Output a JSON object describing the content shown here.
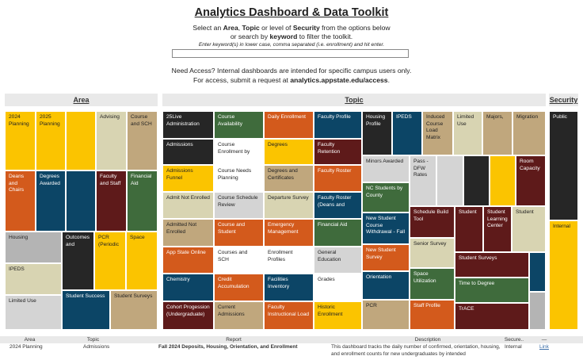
{
  "header": {
    "title": "Analytics Dashboard & Data Toolkit",
    "intro": {
      "l1_a": "Select an ",
      "l1_b": "Area",
      "l1_c": ", ",
      "l1_d": "Topic",
      "l1_e": " or level of ",
      "l1_f": "Security",
      "l1_g": " from the options below",
      "l2_a": "or search by ",
      "l2_b": "keyword",
      "l2_c": " to filter the toolkit."
    },
    "hint": "Enter keyword(s) in lower case, comma separated (i.e. enrollment) and hit enter.",
    "keyword_value": "",
    "access_line1": "Need Access? Internal dashboards are intended for specific campus users only.",
    "access_line2_a": "For access, submit a request at ",
    "access_line2_b": "analytics.appstate.edu/access",
    "access_line2_c": "."
  },
  "panels": {
    "area": "Area",
    "topic": "Topic",
    "security": "Security"
  },
  "area_tiles": {
    "planning_2024": "2024 Planning",
    "planning_2025": "2025 Planning",
    "blank_yellow": "",
    "advising": "Advising",
    "course_sch": "Course and SCH",
    "deans_chairs": "Deans and Chairs",
    "degrees_awarded": "Degrees Awarded",
    "blank_navy": "",
    "faculty_staff": "Faculty and Staff",
    "financial_aid": "Financial Aid",
    "housing": "Housing",
    "outcomes": "Outcomes and",
    "pcr": "PCR (Periodic",
    "space": "Space",
    "ipeds": "IPEDS",
    "limited_use": "Limited Use",
    "student_success": "Student Success",
    "student_surveys": "Student Surveys"
  },
  "topic_tiles": {
    "t25live": "25Live Administration",
    "course_availability": "Course Availability",
    "daily_enrollment": "Daily Enrollment",
    "faculty_profile": "Faculty Profile",
    "housing_profile": "Housing Profile",
    "ipeds": "IPEDS",
    "induced_load": "Induced Course Load Matrix",
    "limited_use": "Limited Use",
    "majors": "Majors,",
    "migration": "Migration",
    "admissions": "Admissions",
    "course_enrollment_by": "Course Enrollment by",
    "degrees": "Degrees",
    "faculty_retention": "Faculty Retention",
    "minors_awarded": "Minors Awarded",
    "pass_dfw": "Pass - DFW Rates",
    "room_capacity": "Room Capacity",
    "admissions_funnel": "Admissions Funnel",
    "course_needs": "Course Needs Planning",
    "degrees_certificates": "Degrees and Certificates",
    "faculty_roster": "Faculty Roster",
    "nc_students": "NC Students by County",
    "admit_not_enrolled": "Admit Not Enrolled",
    "course_schedule_review": "Course Schedule Review",
    "departure_survey": "Departure Survey",
    "faculty_roster_deans": "Faculty Roster (Deans and",
    "schedule_build": "Schedule Build Tool",
    "student": "Student",
    "student_learning_center": "Student Learning Center",
    "student_right": "Student",
    "new_student_withdrawal": "New Student Course Withdrawal - Fall",
    "admitted_not_enrolled": "Admitted Not Enrolled",
    "course_and_student": "Course and Student",
    "emergency_management": "Emergency Management",
    "financial_aid": "Financial Aid",
    "senior_survey": "Senior Survey",
    "app_state_online": "App State Online",
    "courses_sch": "Courses and SCH",
    "enrollment_profiles": "Enrollment Profiles",
    "general_education": "General Education",
    "new_student_survey": "New Student Survey",
    "student_surveys": "Student Surveys",
    "chemistry": "Chemistry",
    "credit_accumulation": "Credit Accumulation",
    "facilities_inventory": "Facilities Inventory",
    "grades": "Grades",
    "orientation": "Orientation",
    "space_utilization": "Space Utilization",
    "time_to_degree": "Time to Degree",
    "cohort_progression": "Cohort Progession (Undergraduate)",
    "current_admissions": "Current Admissions",
    "faculty_instructional": "Faculty Instructional Load",
    "historic_enrollment": "Historic Enrollment",
    "pcr": "PCR",
    "staff_profile": "Staff Profile",
    "trace": "TrACE"
  },
  "security_tiles": {
    "public": "Public",
    "internal": "Internal"
  },
  "table": {
    "columns": [
      "Area",
      "Topic",
      "Report",
      "Description",
      "Secure..",
      "—"
    ],
    "row": {
      "area": "2024 Planning",
      "topic": "Admissions",
      "report": "Fall 2024 Deposits, Housing, Orientation, and Enrollment",
      "description": "This dashboard tracks the daily number of confirmed, orientation, housing, and enrollment counts for new undergraduates by intended",
      "security": "Internal",
      "link": "Link"
    }
  },
  "colors": {
    "black": "#262626",
    "orange": "#d35a1c",
    "navy": "#0c4566",
    "green": "#3f6b3c",
    "maroon": "#5e1a1a",
    "yellow": "#fbc400",
    "tan": "#c0a77d",
    "light_gray": "#d4d4d4"
  }
}
